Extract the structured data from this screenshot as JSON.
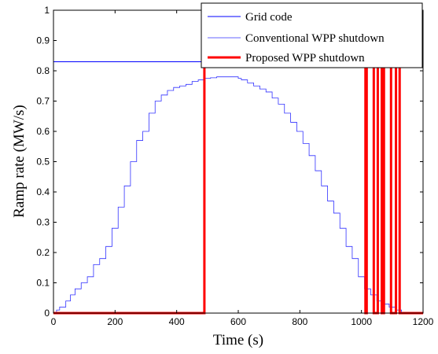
{
  "chart_data": {
    "type": "line",
    "xlabel": "Time (s)",
    "ylabel": "Ramp rate (MW/s)",
    "xlim": [
      0,
      1200
    ],
    "ylim": [
      0,
      1
    ],
    "x_ticks": [
      0,
      200,
      400,
      600,
      800,
      1000,
      1200
    ],
    "y_ticks": [
      0,
      0.1,
      0.2,
      0.3,
      0.4,
      0.5,
      0.6,
      0.7,
      0.8,
      0.9,
      1
    ],
    "x_tick_labels": [
      "0",
      "200",
      "400",
      "600",
      "800",
      "1000",
      "1200"
    ],
    "y_tick_labels": [
      "0",
      "0.1",
      "0.2",
      "0.3",
      "0.4",
      "0.5",
      "0.6",
      "0.7",
      "0.8",
      "0.9",
      "1"
    ],
    "grid": false,
    "legend_position": "top-right",
    "series": [
      {
        "name": "Grid code",
        "color": "#0000ff",
        "style": "line",
        "x": [
          0,
          1200
        ],
        "y": [
          0.83,
          0.83
        ]
      },
      {
        "name": "Conventional WPP shutdown",
        "color": "#3232ff",
        "style": "step",
        "x": [
          0,
          10,
          20,
          40,
          55,
          70,
          90,
          110,
          130,
          150,
          170,
          190,
          210,
          230,
          250,
          270,
          290,
          310,
          330,
          350,
          370,
          390,
          410,
          430,
          450,
          470,
          490,
          510,
          530,
          540,
          600,
          610,
          630,
          650,
          670,
          690,
          710,
          730,
          750,
          770,
          790,
          810,
          830,
          850,
          870,
          890,
          910,
          930,
          950,
          970,
          990,
          1010,
          1030,
          1050,
          1070,
          1090,
          1110,
          1130,
          1150
        ],
        "y": [
          0.0,
          0.01,
          0.02,
          0.04,
          0.06,
          0.08,
          0.1,
          0.12,
          0.16,
          0.18,
          0.22,
          0.28,
          0.35,
          0.42,
          0.5,
          0.57,
          0.6,
          0.66,
          0.7,
          0.72,
          0.735,
          0.745,
          0.75,
          0.755,
          0.765,
          0.77,
          0.775,
          0.777,
          0.78,
          0.78,
          0.775,
          0.77,
          0.76,
          0.75,
          0.74,
          0.73,
          0.71,
          0.69,
          0.66,
          0.63,
          0.6,
          0.56,
          0.52,
          0.47,
          0.42,
          0.37,
          0.33,
          0.28,
          0.22,
          0.18,
          0.12,
          0.08,
          0.06,
          0.04,
          0.03,
          0.02,
          0.01,
          0.0,
          0.0
        ]
      },
      {
        "name": "Proposed WPP shutdown",
        "color": "#ff0000",
        "style": "step",
        "x": [
          0,
          490,
          1013,
          1017,
          1034,
          1040,
          1053,
          1061,
          1066,
          1073,
          1090,
          1096,
          1112,
          1117,
          1124,
          1200
        ],
        "y": [
          0,
          0.83,
          0,
          0.83,
          0.83,
          0,
          0.83,
          0.83,
          0,
          0.83,
          0.83,
          0,
          0.83,
          0.83,
          0,
          0
        ]
      }
    ]
  }
}
